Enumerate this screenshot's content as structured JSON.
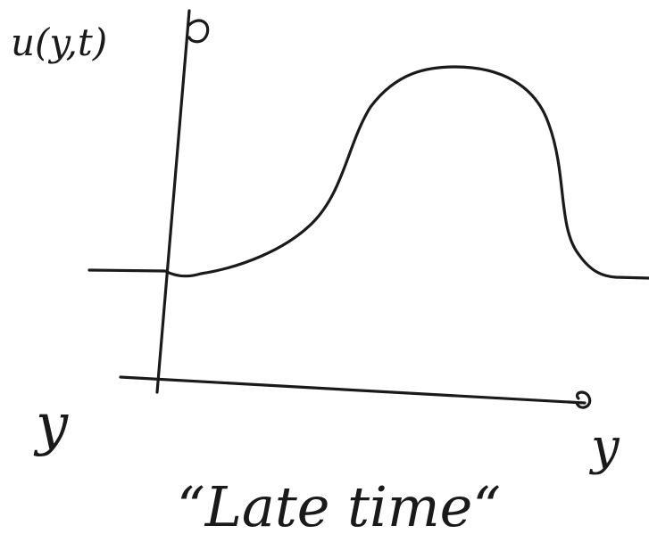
{
  "y_axis_label": "u(y,t)",
  "left_label": "y",
  "x_axis_label": "y",
  "caption": "“Late time“"
}
